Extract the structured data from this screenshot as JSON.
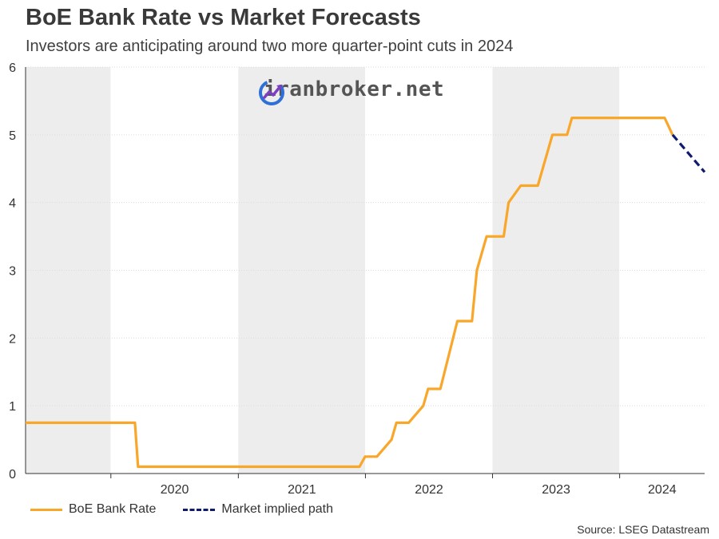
{
  "title": "BoE Bank Rate vs Market Forecasts",
  "subtitle": "Investors are anticipating around two more quarter-point cuts in 2024",
  "source": "Source: LSEG Datastream",
  "watermark": "iranbroker.net",
  "colors": {
    "bank_rate": "#F9A72B",
    "implied_path": "#0F1C6E",
    "band": "#EDEDED",
    "grid": "#DDDDDD"
  },
  "chart_data": {
    "type": "line",
    "title": "BoE Bank Rate vs Market Forecasts",
    "subtitle": "Investors are anticipating around two more quarter-point cuts in 2024",
    "xlabel": "",
    "ylabel": "",
    "xlim": [
      "2019-05-01",
      "2024-09-01"
    ],
    "ylim": [
      0,
      6
    ],
    "y_ticks": [
      0,
      1,
      2,
      3,
      4,
      5,
      6
    ],
    "x_tick_labels": [
      "2020",
      "2021",
      "2022",
      "2023",
      "2024"
    ],
    "grid": true,
    "legend_position": "bottom",
    "series": [
      {
        "name": "BoE Bank Rate",
        "style": "solid",
        "points": [
          [
            "2019-05-01",
            0.75
          ],
          [
            "2020-03-10",
            0.75
          ],
          [
            "2020-03-19",
            0.1
          ],
          [
            "2021-12-15",
            0.1
          ],
          [
            "2021-12-31",
            0.25
          ],
          [
            "2022-02-03",
            0.25
          ],
          [
            "2022-03-17",
            0.5
          ],
          [
            "2022-03-31",
            0.75
          ],
          [
            "2022-05-05",
            0.75
          ],
          [
            "2022-06-16",
            1.0
          ],
          [
            "2022-06-30",
            1.25
          ],
          [
            "2022-08-04",
            1.25
          ],
          [
            "2022-09-22",
            2.25
          ],
          [
            "2022-11-03",
            2.25
          ],
          [
            "2022-11-17",
            3.0
          ],
          [
            "2022-12-15",
            3.5
          ],
          [
            "2023-02-02",
            3.5
          ],
          [
            "2023-02-16",
            4.0
          ],
          [
            "2023-03-23",
            4.25
          ],
          [
            "2023-05-11",
            4.25
          ],
          [
            "2023-06-22",
            5.0
          ],
          [
            "2023-08-03",
            5.0
          ],
          [
            "2023-08-17",
            5.25
          ],
          [
            "2024-05-09",
            5.25
          ],
          [
            "2024-06-01",
            5.0
          ]
        ]
      },
      {
        "name": "Market implied path",
        "style": "dashed",
        "points": [
          [
            "2024-06-01",
            5.0
          ],
          [
            "2024-09-01",
            4.45
          ]
        ]
      }
    ],
    "shaded_bands": [
      [
        "2019-05-01",
        "2019-12-31"
      ],
      [
        "2021-01-01",
        "2021-12-31"
      ],
      [
        "2023-01-01",
        "2023-12-31"
      ]
    ]
  }
}
